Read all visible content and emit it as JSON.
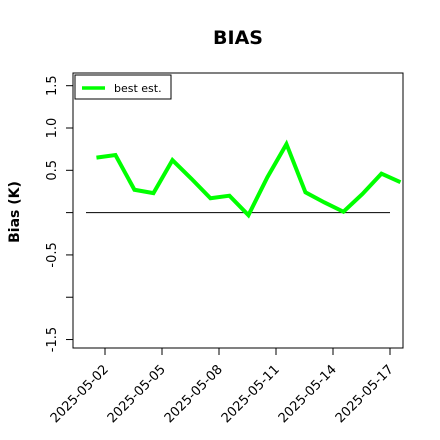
{
  "chart_data": {
    "type": "line",
    "title": "BIAS",
    "xlabel": "",
    "ylabel": "Bias (K)",
    "ylim": [
      -1.6,
      1.65
    ],
    "yticks": [
      -1.5,
      -1.0,
      -0.5,
      0.0,
      0.5,
      1.0,
      1.5
    ],
    "ytick_labels": [
      "-1.5",
      "",
      "-0.5",
      "",
      "0.5",
      "1.0",
      "1.5"
    ],
    "x_dates": [
      "2025-05-01",
      "2025-05-02",
      "2025-05-03",
      "2025-05-04",
      "2025-05-05",
      "2025-05-06",
      "2025-05-07",
      "2025-05-08",
      "2025-05-09",
      "2025-05-10",
      "2025-05-11",
      "2025-05-12",
      "2025-05-13",
      "2025-05-14",
      "2025-05-15",
      "2025-05-16",
      "2025-05-17"
    ],
    "xticks": [
      "2025-05-02",
      "2025-05-05",
      "2025-05-08",
      "2025-05-11",
      "2025-05-14",
      "2025-05-17"
    ],
    "series": [
      {
        "name": "best est.",
        "color": "#00ff00",
        "values": [
          0.65,
          0.68,
          0.27,
          0.23,
          0.62,
          0.4,
          0.17,
          0.2,
          -0.03,
          0.42,
          0.81,
          0.24,
          0.12,
          0.01,
          0.22,
          0.46,
          0.36
        ]
      }
    ],
    "reference_line": {
      "y": 0.0,
      "color": "#000000"
    },
    "legend": "top-left",
    "grid": false
  }
}
